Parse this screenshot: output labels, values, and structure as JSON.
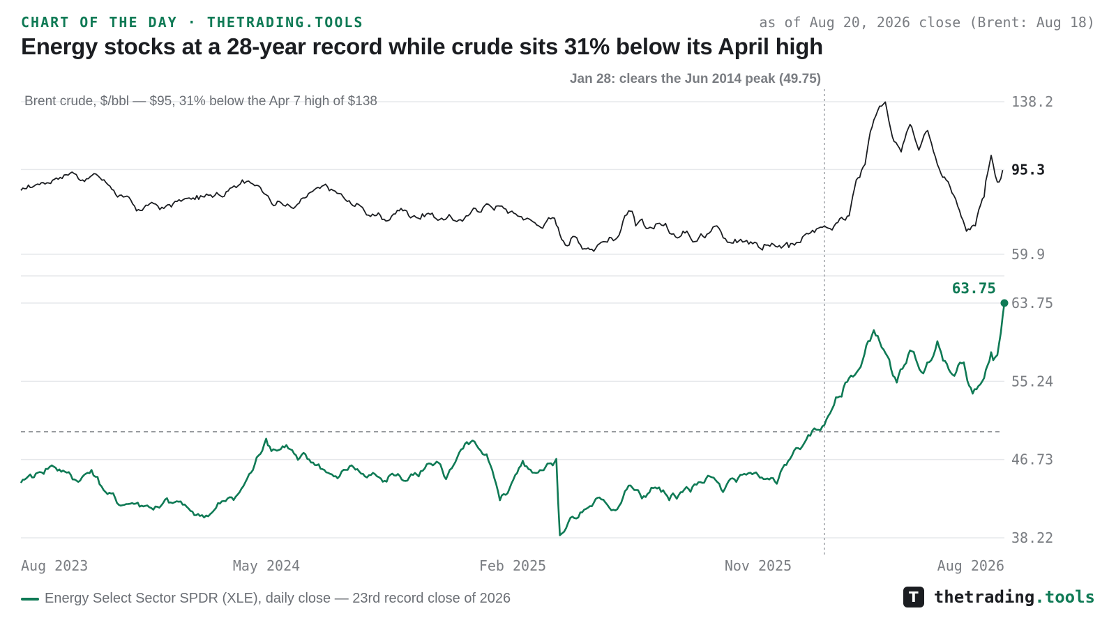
{
  "header": {
    "kicker": "CHART OF THE DAY · THETRADING.TOOLS",
    "as_of": "as of Aug 20, 2026 close (Brent: Aug 18)",
    "title": "Energy stocks at a 28-year record while crude sits 31% below its April high"
  },
  "colors": {
    "xle": "#0f7a55",
    "brent": "#1b1d21",
    "grid": "#e6e8eb",
    "axis_text": "#7a7d82",
    "annotation": "#6b6f75"
  },
  "chart_data": [
    {
      "type": "line",
      "name": "brent-panel",
      "title": "Brent crude, $/bbl — $95, 31% below the Apr 7 high of $138",
      "scale": "log",
      "ylim": [
        59.9,
        138.2
      ],
      "yticks": [
        "138.2",
        "95.3",
        "59.9"
      ],
      "last_value_label": "95.3",
      "series": [
        {
          "name": "Brent crude, $/bbl",
          "anchors": [
            [
              "2023-08-01",
              85
            ],
            [
              "2023-08-20",
              88
            ],
            [
              "2023-09-10",
              91
            ],
            [
              "2023-09-28",
              94
            ],
            [
              "2023-10-10",
              90
            ],
            [
              "2023-10-25",
              93
            ],
            [
              "2023-11-10",
              87
            ],
            [
              "2023-11-25",
              82
            ],
            [
              "2023-12-10",
              76
            ],
            [
              "2023-12-25",
              79
            ],
            [
              "2024-01-10",
              77
            ],
            [
              "2024-01-25",
              80
            ],
            [
              "2024-02-10",
              81
            ],
            [
              "2024-02-25",
              82
            ],
            [
              "2024-03-10",
              84
            ],
            [
              "2024-03-25",
              86
            ],
            [
              "2024-04-08",
              90
            ],
            [
              "2024-04-20",
              88
            ],
            [
              "2024-05-05",
              83
            ],
            [
              "2024-05-20",
              80
            ],
            [
              "2024-06-05",
              77
            ],
            [
              "2024-06-20",
              82
            ],
            [
              "2024-07-05",
              86
            ],
            [
              "2024-07-20",
              85
            ],
            [
              "2024-08-05",
              80
            ],
            [
              "2024-08-20",
              78
            ],
            [
              "2024-09-05",
              74
            ],
            [
              "2024-09-20",
              72
            ],
            [
              "2024-10-05",
              77
            ],
            [
              "2024-10-20",
              74
            ],
            [
              "2024-11-05",
              75
            ],
            [
              "2024-11-20",
              73
            ],
            [
              "2024-12-05",
              72
            ],
            [
              "2024-12-20",
              74
            ],
            [
              "2025-01-10",
              79
            ],
            [
              "2025-01-25",
              78
            ],
            [
              "2025-02-10",
              75
            ],
            [
              "2025-02-25",
              73
            ],
            [
              "2025-03-10",
              70
            ],
            [
              "2025-03-28",
              73
            ],
            [
              "2025-04-05",
              65
            ],
            [
              "2025-04-20",
              66
            ],
            [
              "2025-05-05",
              62
            ],
            [
              "2025-05-20",
              64
            ],
            [
              "2025-06-05",
              65
            ],
            [
              "2025-06-20",
              76
            ],
            [
              "2025-06-28",
              70
            ],
            [
              "2025-07-10",
              69
            ],
            [
              "2025-07-25",
              71
            ],
            [
              "2025-08-10",
              67
            ],
            [
              "2025-08-25",
              68
            ],
            [
              "2025-09-10",
              67
            ],
            [
              "2025-09-28",
              70
            ],
            [
              "2025-10-10",
              64
            ],
            [
              "2025-10-25",
              65
            ],
            [
              "2025-11-10",
              64
            ],
            [
              "2025-11-25",
              63
            ],
            [
              "2025-12-10",
              62
            ],
            [
              "2025-12-25",
              63
            ],
            [
              "2026-01-10",
              67
            ],
            [
              "2026-01-28",
              70
            ],
            [
              "2026-02-10",
              71
            ],
            [
              "2026-02-25",
              74
            ],
            [
              "2026-03-05",
              90
            ],
            [
              "2026-03-15",
              98
            ],
            [
              "2026-03-25",
              125
            ],
            [
              "2026-04-07",
              138
            ],
            [
              "2026-04-15",
              114
            ],
            [
              "2026-04-25",
              105
            ],
            [
              "2026-05-05",
              122
            ],
            [
              "2026-05-15",
              106
            ],
            [
              "2026-05-25",
              118
            ],
            [
              "2026-06-05",
              98
            ],
            [
              "2026-06-15",
              90
            ],
            [
              "2026-06-28",
              78
            ],
            [
              "2026-07-08",
              68
            ],
            [
              "2026-07-18",
              70
            ],
            [
              "2026-07-28",
              82
            ],
            [
              "2026-08-05",
              103
            ],
            [
              "2026-08-12",
              89
            ],
            [
              "2026-08-18",
              95
            ]
          ]
        }
      ]
    },
    {
      "type": "line",
      "name": "xle-panel",
      "ylim": [
        38.22,
        63.75
      ],
      "yticks": [
        "63.75",
        "55.24",
        "46.73",
        "38.22"
      ],
      "last_value_label": "63.75",
      "reference_line": {
        "value": 49.75
      },
      "annotations": [
        {
          "x": "2026-01-28",
          "text": "Jan 28: clears the Jun 2014 peak (49.75)"
        }
      ],
      "x_tick_labels": [
        "Aug 2023",
        "May 2024",
        "Feb 2025",
        "Nov 2025",
        "Aug 2026"
      ],
      "series": [
        {
          "name": "Energy Select Sector SPDR (XLE), daily close — 23rd record close of 2026",
          "anchors": [
            [
              "2023-08-01",
              44.2
            ],
            [
              "2023-08-20",
              45.3
            ],
            [
              "2023-09-05",
              46.1
            ],
            [
              "2023-09-20",
              45.4
            ],
            [
              "2023-10-05",
              44.3
            ],
            [
              "2023-10-20",
              45.6
            ],
            [
              "2023-11-05",
              43.2
            ],
            [
              "2023-11-20",
              41.8
            ],
            [
              "2023-12-05",
              42.0
            ],
            [
              "2023-12-20",
              41.7
            ],
            [
              "2024-01-05",
              41.5
            ],
            [
              "2024-01-20",
              42.0
            ],
            [
              "2024-02-05",
              41.6
            ],
            [
              "2024-02-20",
              40.6
            ],
            [
              "2024-03-05",
              41.0
            ],
            [
              "2024-03-20",
              42.2
            ],
            [
              "2024-04-05",
              43.2
            ],
            [
              "2024-04-20",
              45.6
            ],
            [
              "2024-05-05",
              49.0
            ],
            [
              "2024-05-15",
              47.8
            ],
            [
              "2024-05-28",
              48.3
            ],
            [
              "2024-06-10",
              46.7
            ],
            [
              "2024-06-25",
              46.4
            ],
            [
              "2024-07-10",
              45.6
            ],
            [
              "2024-07-25",
              44.7
            ],
            [
              "2024-08-10",
              46.1
            ],
            [
              "2024-08-25",
              44.9
            ],
            [
              "2024-09-10",
              44.8
            ],
            [
              "2024-09-25",
              45.2
            ],
            [
              "2024-10-10",
              44.4
            ],
            [
              "2024-10-25",
              44.9
            ],
            [
              "2024-11-10",
              46.1
            ],
            [
              "2024-11-25",
              44.6
            ],
            [
              "2024-12-10",
              47.5
            ],
            [
              "2024-12-25",
              48.8
            ],
            [
              "2025-01-10",
              47.3
            ],
            [
              "2025-01-25",
              42.3
            ],
            [
              "2025-02-05",
              43.6
            ],
            [
              "2025-02-20",
              46.6
            ],
            [
              "2025-03-05",
              45.3
            ],
            [
              "2025-03-20",
              46.3
            ],
            [
              "2025-03-30",
              46.8
            ],
            [
              "2025-04-03",
              38.5
            ],
            [
              "2025-04-15",
              40.4
            ],
            [
              "2025-05-05",
              41.5
            ],
            [
              "2025-05-20",
              42.4
            ],
            [
              "2025-06-05",
              41.2
            ],
            [
              "2025-06-20",
              43.9
            ],
            [
              "2025-07-05",
              42.5
            ],
            [
              "2025-07-20",
              43.7
            ],
            [
              "2025-08-05",
              42.3
            ],
            [
              "2025-08-20",
              43.2
            ],
            [
              "2025-09-05",
              44.0
            ],
            [
              "2025-09-20",
              44.9
            ],
            [
              "2025-10-05",
              43.2
            ],
            [
              "2025-10-20",
              44.3
            ],
            [
              "2025-11-05",
              45.3
            ],
            [
              "2025-11-20",
              44.6
            ],
            [
              "2025-12-05",
              44.1
            ],
            [
              "2025-12-20",
              46.8
            ],
            [
              "2026-01-05",
              48.5
            ],
            [
              "2026-01-28",
              50.5
            ],
            [
              "2026-02-10",
              53.5
            ],
            [
              "2026-02-25",
              55.6
            ],
            [
              "2026-03-10",
              56.8
            ],
            [
              "2026-03-25",
              60.8
            ],
            [
              "2026-04-05",
              58.7
            ],
            [
              "2026-04-20",
              55.1
            ],
            [
              "2026-05-05",
              58.6
            ],
            [
              "2026-05-20",
              56.1
            ],
            [
              "2026-06-05",
              59.6
            ],
            [
              "2026-06-20",
              56.2
            ],
            [
              "2026-07-05",
              57.3
            ],
            [
              "2026-07-15",
              53.9
            ],
            [
              "2026-07-28",
              55.6
            ],
            [
              "2026-08-05",
              58.4
            ],
            [
              "2026-08-12",
              58.1
            ],
            [
              "2026-08-20",
              63.75
            ]
          ]
        }
      ]
    }
  ],
  "legend": {
    "label": "Energy Select Sector SPDR (XLE), daily close — 23rd record close of 2026"
  },
  "brand": {
    "prefix": "thetrading",
    "accent": ".tools",
    "logo_glyph": "T"
  }
}
